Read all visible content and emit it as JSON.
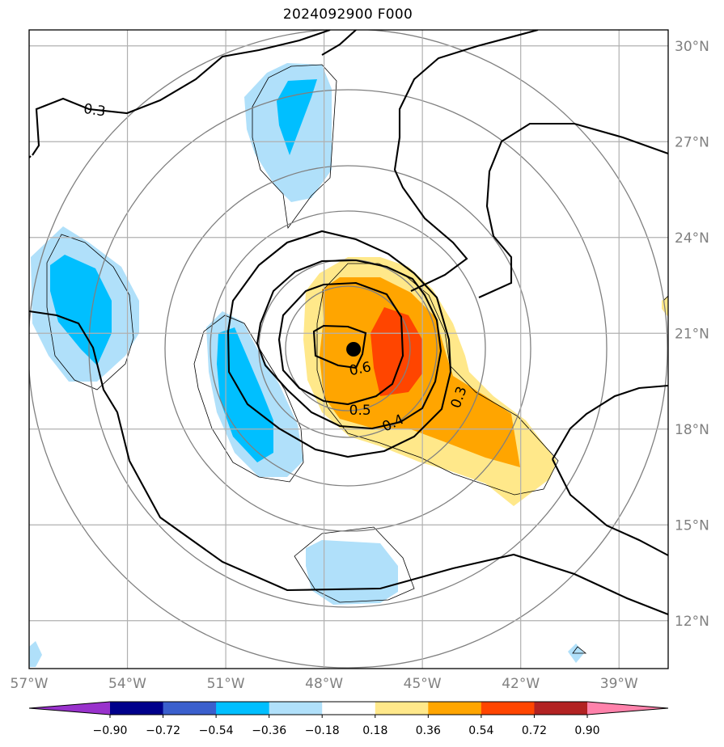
{
  "title": "2024092900 F000",
  "map": {
    "lon_range": [
      -57,
      -37.5
    ],
    "lat_range": [
      10.5,
      30.5
    ],
    "lon_ticks": [
      -57,
      -54,
      -51,
      -48,
      -45,
      -42,
      -39
    ],
    "lat_ticks": [
      12,
      15,
      18,
      21,
      24,
      27,
      30
    ],
    "lon_tick_labels": [
      "57°W",
      "54°W",
      "51°W",
      "48°W",
      "45°W",
      "42°W",
      "39°W"
    ],
    "lat_tick_labels": [
      "12°N",
      "15°N",
      "18°N",
      "21°N",
      "24°N",
      "27°N",
      "30°N"
    ],
    "storm_center": {
      "lon": -47.1,
      "lat": 20.5
    },
    "contour_labels": [
      {
        "text": "0.3",
        "lon": -55.0,
        "lat": 28.0,
        "angle": 8
      },
      {
        "text": "0.6",
        "lon": -46.9,
        "lat": 19.9,
        "angle": -12
      },
      {
        "text": "0.5",
        "lon": -46.9,
        "lat": 18.6,
        "angle": 0
      },
      {
        "text": "0.4",
        "lon": -45.9,
        "lat": 18.2,
        "angle": -25
      },
      {
        "text": "0.3",
        "lon": -43.9,
        "lat": 19.0,
        "angle": -70
      }
    ]
  },
  "colorbar": {
    "labels": [
      "−0.90",
      "−0.72",
      "−0.54",
      "−0.36",
      "−0.18",
      "0.18",
      "0.36",
      "0.54",
      "0.72",
      "0.90"
    ],
    "colors": [
      "#9932cc",
      "#00008b",
      "#3a5fcd",
      "#00bfff",
      "#b0e0fa",
      "#ffffff",
      "#ffe88a",
      "#ffa500",
      "#ff4500",
      "#b22222",
      "#ff82ab",
      "#ff82ab"
    ]
  }
}
